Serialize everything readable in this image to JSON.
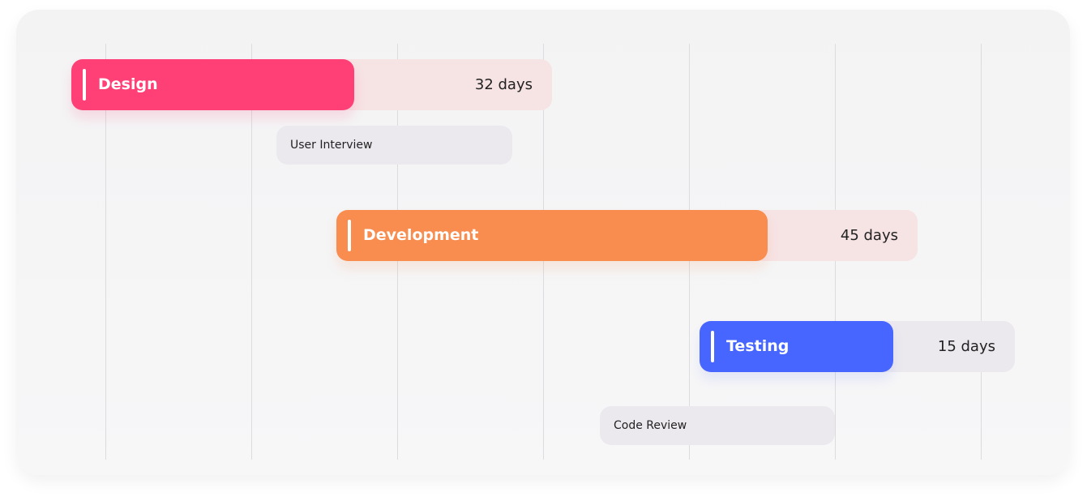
{
  "tasks": [
    {
      "label": "Design",
      "duration": "32 days",
      "color": "#ff4077",
      "track_color": "#f6e3e4"
    },
    {
      "label": "Development",
      "duration": "45 days",
      "color": "#f98d50",
      "track_color": "#f6e3e4"
    },
    {
      "label": "Testing",
      "duration": "15 days",
      "color": "#4765ff",
      "track_color": "#ebe9ee"
    }
  ],
  "subtasks": [
    {
      "label": "User Interview"
    },
    {
      "label": "Code Review"
    }
  ]
}
